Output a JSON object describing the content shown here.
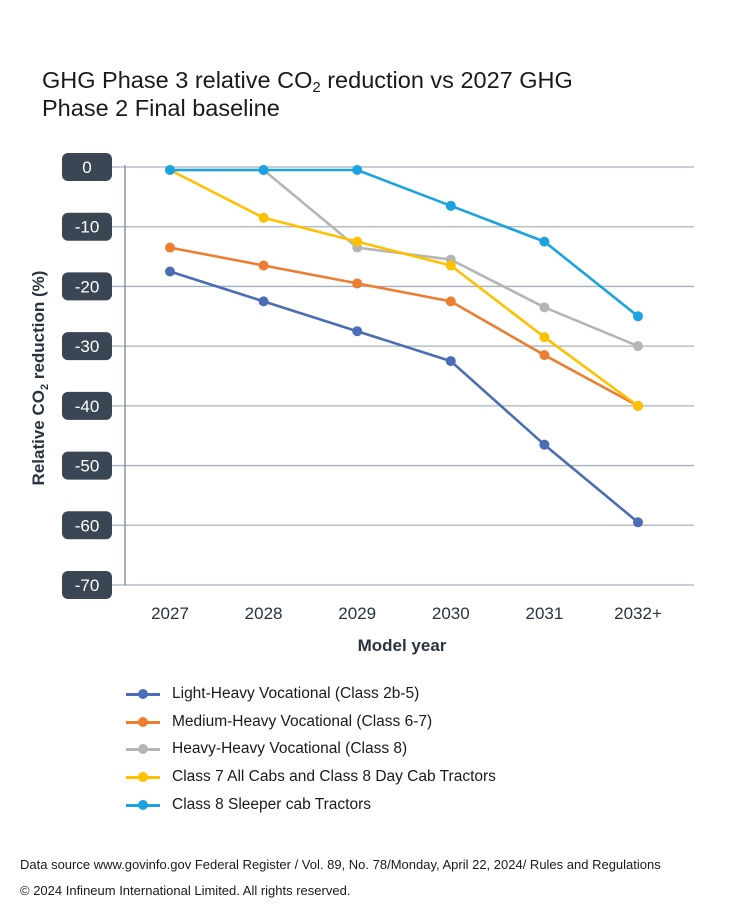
{
  "title": {
    "line1_before": "GHG Phase 3 relative CO",
    "line1_sub": "2",
    "line1_after": " reduction vs 2027 GHG",
    "line2": "Phase 2 Final baseline"
  },
  "chart_data": {
    "type": "line",
    "x": [
      "2027",
      "2028",
      "2029",
      "2030",
      "2031",
      "2032+"
    ],
    "xlabel": "Model year",
    "ylabel_before": "Relative CO",
    "ylabel_sub": "2",
    "ylabel_after": " reduction (%)",
    "ylim": [
      -70,
      0
    ],
    "yticks": [
      0,
      -10,
      -20,
      -30,
      -40,
      -50,
      -60,
      -70
    ],
    "ytick_labels": [
      "0",
      "-10",
      "-20",
      "-30",
      "-40",
      "-50",
      "-60",
      "-70"
    ],
    "grid": true,
    "legend_position": "bottom",
    "series": [
      {
        "name": "Light-Heavy Vocational (Class 2b-5)",
        "color": "#4a6db5",
        "values": [
          -17.5,
          -22.5,
          -27.5,
          -32.5,
          -46.5,
          -59.5
        ]
      },
      {
        "name": "Medium-Heavy Vocational (Class 6-7)",
        "color": "#ed7d31",
        "values": [
          -13.5,
          -16.5,
          -19.5,
          -22.5,
          -31.5,
          -40.0
        ]
      },
      {
        "name": "Heavy-Heavy Vocational (Class 8)",
        "color": "#b5b5b5",
        "values": [
          -0.5,
          -0.5,
          -13.5,
          -15.5,
          -23.5,
          -30.0
        ]
      },
      {
        "name": "Class 7 All Cabs and Class 8 Day Cab Tractors",
        "color": "#ffc000",
        "values": [
          -0.5,
          -8.5,
          -12.5,
          -16.5,
          -28.5,
          -40.0
        ]
      },
      {
        "name": "Class 8 Sleeper cab Tractors",
        "color": "#1aa3e0",
        "values": [
          -0.5,
          -0.5,
          -0.5,
          -6.5,
          -12.5,
          -25.0
        ]
      }
    ]
  },
  "source": "Data source www.govinfo.gov Federal Register / Vol. 89, No. 78/Monday, April 22, 2024/ Rules and Regulations",
  "copyright": "© 2024 Infineum International Limited. All rights reserved."
}
